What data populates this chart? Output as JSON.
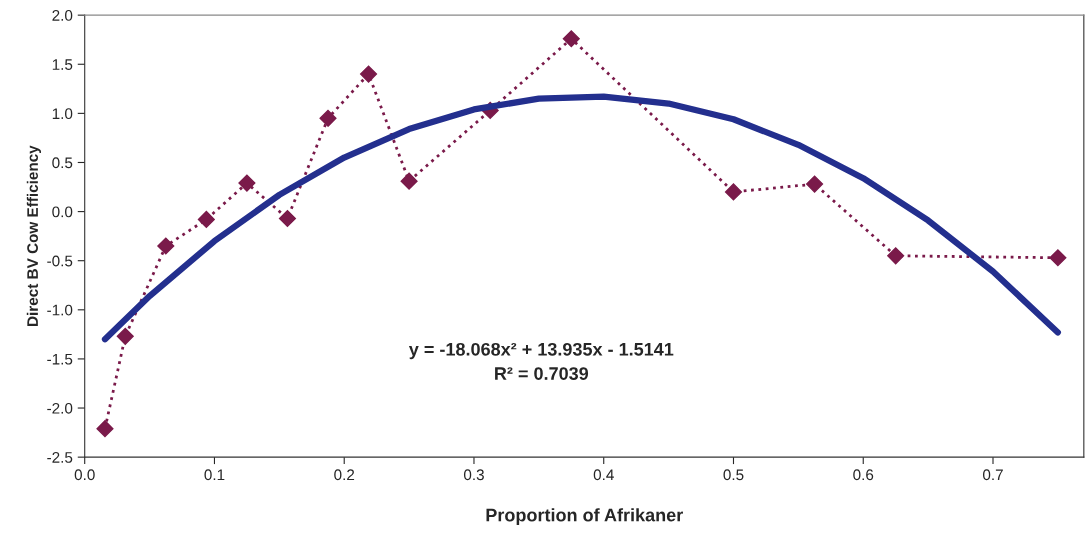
{
  "chart_data": {
    "type": "line",
    "xlabel": "Proportion of Afrikaner",
    "ylabel": "Direct BV Cow Efficiency",
    "series": [
      {
        "color": "#7a1a4a",
        "marker": "diamond",
        "line_style": "dotted",
        "x": [
          0.015625,
          0.03125,
          0.0625,
          0.09375,
          0.125,
          0.15625,
          0.1875,
          0.21875,
          0.25,
          0.3125,
          0.375,
          0.5,
          0.5625,
          0.625,
          0.75
        ],
        "values": [
          -2.21,
          -1.27,
          -0.35,
          -0.08,
          0.29,
          -0.07,
          0.95,
          1.4,
          0.31,
          1.03,
          1.76,
          0.2,
          0.28,
          -0.45,
          -0.47
        ]
      },
      {
        "color": "#232f8e",
        "marker": "none",
        "line_style": "solid",
        "x": [
          0.015625,
          0.05,
          0.1,
          0.15,
          0.2,
          0.25,
          0.3,
          0.35,
          0.4,
          0.45,
          0.5,
          0.55,
          0.6,
          0.65,
          0.7,
          0.75
        ],
        "values": [
          -1.3,
          -0.86,
          -0.3,
          0.17,
          0.55,
          0.84,
          1.04,
          1.15,
          1.17,
          1.1,
          0.94,
          0.68,
          0.34,
          -0.09,
          -0.61,
          -1.23
        ]
      }
    ],
    "annotations": [
      "y = -18.068x² + 13.935x - 1.5141",
      "R² = 0.7039"
    ],
    "xlim": [
      0,
      0.77
    ],
    "xticks": [
      {
        "value": 0,
        "label": "0.0"
      },
      0.1,
      0.2,
      0.3,
      0.4,
      0.5,
      0.6,
      0.7
    ],
    "ylim": [
      -2.5,
      2.0
    ],
    "yticks": [
      -2.5,
      {
        "value": -2,
        "label": "-2.0"
      },
      -1.5,
      {
        "value": -1,
        "label": "-1.0"
      },
      -0.5,
      {
        "value": 0,
        "label": "0.0"
      },
      0.5,
      {
        "value": 1,
        "label": "1.0"
      },
      1.5,
      {
        "value": 2,
        "label": "2.0"
      }
    ],
    "grid": false,
    "legend": false
  }
}
